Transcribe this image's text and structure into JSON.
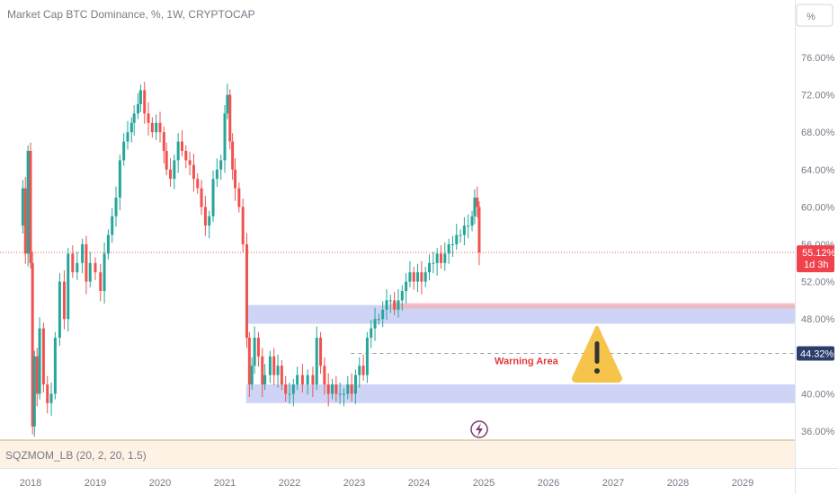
{
  "chart_data": {
    "type": "candlestick",
    "title": "Market Cap BTC Dominance, %, 1W, CRYPTOCAP",
    "unit_button": "%",
    "y_ticks": [
      "76.00%",
      "72.00%",
      "68.00%",
      "64.00%",
      "60.00%",
      "56.00%",
      "52.00%",
      "48.00%",
      "44.00%",
      "40.00%",
      "36.00%"
    ],
    "ylim": [
      35,
      80
    ],
    "x_ticks": [
      "2018",
      "2019",
      "2020",
      "2021",
      "2022",
      "2023",
      "2024",
      "2025",
      "2026",
      "2027",
      "2028",
      "2029"
    ],
    "x_tick_years": [
      2018,
      2019,
      2020,
      2021,
      2022,
      2023,
      2024,
      2025,
      2026,
      2027,
      2028,
      2029
    ],
    "series": [
      {
        "values": [
          [
            2017.82,
            58
          ],
          [
            2017.88,
            62
          ],
          [
            2017.92,
            55
          ],
          [
            2017.96,
            66
          ],
          [
            2018.0,
            54
          ],
          [
            2018.03,
            36.5
          ],
          [
            2018.06,
            44
          ],
          [
            2018.1,
            40
          ],
          [
            2018.14,
            47
          ],
          [
            2018.2,
            41
          ],
          [
            2018.26,
            39
          ],
          [
            2018.32,
            40
          ],
          [
            2018.38,
            46
          ],
          [
            2018.45,
            52
          ],
          [
            2018.52,
            48
          ],
          [
            2018.58,
            55
          ],
          [
            2018.65,
            53
          ],
          [
            2018.72,
            54
          ],
          [
            2018.8,
            56
          ],
          [
            2018.86,
            52
          ],
          [
            2018.92,
            54
          ],
          [
            2019.0,
            53
          ],
          [
            2019.08,
            51
          ],
          [
            2019.14,
            55
          ],
          [
            2019.2,
            57
          ],
          [
            2019.26,
            59
          ],
          [
            2019.32,
            61
          ],
          [
            2019.38,
            65
          ],
          [
            2019.44,
            67
          ],
          [
            2019.5,
            68
          ],
          [
            2019.56,
            69
          ],
          [
            2019.6,
            70
          ],
          [
            2019.66,
            71
          ],
          [
            2019.7,
            72.5
          ],
          [
            2019.76,
            70
          ],
          [
            2019.82,
            69
          ],
          [
            2019.88,
            68
          ],
          [
            2019.94,
            69
          ],
          [
            2020.0,
            68
          ],
          [
            2020.06,
            66
          ],
          [
            2020.1,
            64
          ],
          [
            2020.16,
            63
          ],
          [
            2020.22,
            65
          ],
          [
            2020.28,
            67
          ],
          [
            2020.34,
            66
          ],
          [
            2020.4,
            65
          ],
          [
            2020.46,
            64.5
          ],
          [
            2020.52,
            63
          ],
          [
            2020.58,
            62
          ],
          [
            2020.64,
            60
          ],
          [
            2020.7,
            58
          ],
          [
            2020.76,
            59
          ],
          [
            2020.82,
            63
          ],
          [
            2020.88,
            64
          ],
          [
            2020.94,
            65
          ],
          [
            2021.0,
            70
          ],
          [
            2021.04,
            72
          ],
          [
            2021.08,
            67
          ],
          [
            2021.12,
            64
          ],
          [
            2021.16,
            62
          ],
          [
            2021.22,
            60
          ],
          [
            2021.28,
            56
          ],
          [
            2021.34,
            46
          ],
          [
            2021.38,
            41
          ],
          [
            2021.42,
            43
          ],
          [
            2021.46,
            46
          ],
          [
            2021.52,
            44
          ],
          [
            2021.58,
            41
          ],
          [
            2021.62,
            42
          ],
          [
            2021.7,
            44
          ],
          [
            2021.76,
            42
          ],
          [
            2021.82,
            43
          ],
          [
            2021.88,
            41
          ],
          [
            2021.94,
            40
          ],
          [
            2022.0,
            40
          ],
          [
            2022.06,
            41
          ],
          [
            2022.12,
            42
          ],
          [
            2022.2,
            41
          ],
          [
            2022.28,
            42
          ],
          [
            2022.36,
            41
          ],
          [
            2022.42,
            46
          ],
          [
            2022.48,
            43
          ],
          [
            2022.54,
            41
          ],
          [
            2022.6,
            40
          ],
          [
            2022.66,
            41
          ],
          [
            2022.72,
            40
          ],
          [
            2022.78,
            40
          ],
          [
            2022.84,
            40
          ],
          [
            2022.9,
            41
          ],
          [
            2022.96,
            40
          ],
          [
            2023.02,
            42
          ],
          [
            2023.08,
            43
          ],
          [
            2023.14,
            42
          ],
          [
            2023.2,
            46
          ],
          [
            2023.26,
            47
          ],
          [
            2023.32,
            48
          ],
          [
            2023.38,
            48
          ],
          [
            2023.44,
            49
          ],
          [
            2023.5,
            50
          ],
          [
            2023.56,
            50
          ],
          [
            2023.62,
            49
          ],
          [
            2023.68,
            50
          ],
          [
            2023.74,
            51
          ],
          [
            2023.8,
            52
          ],
          [
            2023.86,
            53
          ],
          [
            2023.92,
            52
          ],
          [
            2023.98,
            53
          ],
          [
            2024.04,
            52
          ],
          [
            2024.1,
            53
          ],
          [
            2024.16,
            54
          ],
          [
            2024.22,
            54
          ],
          [
            2024.28,
            55
          ],
          [
            2024.34,
            54
          ],
          [
            2024.4,
            55
          ],
          [
            2024.46,
            56
          ],
          [
            2024.52,
            56
          ],
          [
            2024.58,
            57
          ],
          [
            2024.64,
            57
          ],
          [
            2024.7,
            58
          ],
          [
            2024.76,
            58
          ],
          [
            2024.82,
            59
          ],
          [
            2024.86,
            61
          ],
          [
            2024.9,
            60
          ],
          [
            2024.93,
            55.12
          ]
        ]
      }
    ],
    "last_value_label": "55.12%",
    "countdown_label": "1d 3h",
    "level_label": "44.32%",
    "level_value": 44.32,
    "zones": [
      {
        "y": [
          47.5,
          49.5
        ],
        "x_start": 2021.33
      },
      {
        "y": [
          39.0,
          41.0
        ],
        "x_start": 2021.33
      }
    ],
    "warning_area_label": "Warning Area",
    "indicator_label": "SQZMOM_LB (20, 2, 20, 1.5)",
    "colors": {
      "up": "#26a69a",
      "down": "#ef5350",
      "zone": "#c5cdf5",
      "zone_edge": "#f4b3b8",
      "last_badge": "#f0424d",
      "level_badge": "#2d3e6b",
      "warning": "#f6c44a"
    }
  }
}
